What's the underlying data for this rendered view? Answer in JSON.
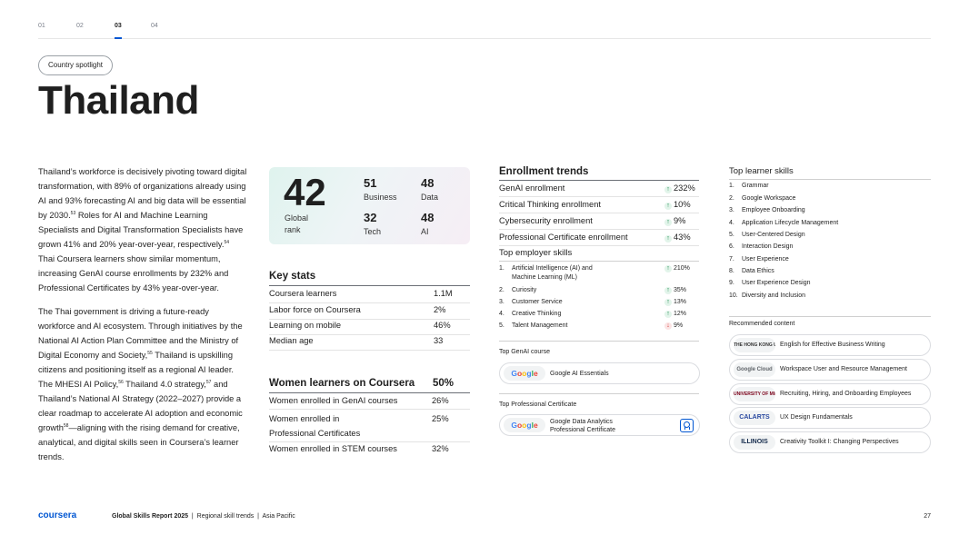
{
  "tabs": [
    "01",
    "02",
    "03",
    "04"
  ],
  "active_tab": "03",
  "spotlight_label": "Country spotlight",
  "page_title": "Thailand",
  "body": {
    "p1": "Thailand’s workforce is decisively pivoting toward digital transformation, with 89% of organizations already using AI and 93% forecasting AI and big data will be essential by 2030.",
    "p1_ref1": "53",
    "p1b": " Roles for AI and Machine Learning Specialists and Digital Transformation Specialists have grown 41% and 20% year-over-year, respectively.",
    "p1_ref2": "54",
    "p1c": " Thai Coursera learners show similar momentum, increasing GenAI course enrollments by 232% and Professional Certificates by 43% year-over-year.",
    "p2": "The Thai government is driving a future-ready workforce and AI ecosystem. Through initiatives by the National AI Action Plan Committee and the Ministry of Digital Economy and Society,",
    "p2_ref1": "55",
    "p2b": " Thailand is upskilling citizens and positioning itself as a regional AI leader. The MHESI AI Policy,",
    "p2_ref2": "56",
    "p2c": " Thailand 4.0 strategy,",
    "p2_ref3": "57",
    "p2d": " and Thailand’s National AI Strategy (2022–2027) provide a clear roadmap to accelerate AI adoption and economic growth",
    "p2_ref4": "58",
    "p2e": "—aligning with the rising demand for creative, analytical, and digital skills seen in Coursera’s learner trends."
  },
  "rank": {
    "global_value": "42",
    "global_label": "Global rank",
    "stats": [
      {
        "value": "51",
        "label": "Business"
      },
      {
        "value": "48",
        "label": "Data"
      },
      {
        "value": "32",
        "label": "Tech"
      },
      {
        "value": "48",
        "label": "AI"
      }
    ]
  },
  "key_stats": {
    "heading": "Key stats",
    "rows": [
      {
        "label": "Coursera learners",
        "value": "1.1M"
      },
      {
        "label": "Labor force on Coursera",
        "value": "2%"
      },
      {
        "label": "Learning on mobile",
        "value": "46%"
      },
      {
        "label": "Median age",
        "value": "33"
      }
    ]
  },
  "women": {
    "heading": "Women learners on Coursera",
    "heading_value": "50%",
    "rows": [
      {
        "label": "Women enrolled in GenAI courses",
        "value": "26%"
      },
      {
        "label": "Women enrolled in Professional Certificates",
        "value": "25%"
      },
      {
        "label": "Women enrolled in STEM courses",
        "value": "32%"
      }
    ]
  },
  "enrollment": {
    "heading": "Enrollment trends",
    "rows": [
      {
        "label": "GenAI enrollment",
        "value": "232%"
      },
      {
        "label": "Critical Thinking enrollment",
        "value": "10%"
      },
      {
        "label": "Cybersecurity enrollment",
        "value": "9%"
      },
      {
        "label": "Professional Certificate enrollment",
        "value": "43%"
      }
    ]
  },
  "employer": {
    "heading": "Top employer skills",
    "rows": [
      {
        "n": "1.",
        "label": "Artificial Intelligence (AI) and Machine Learning (ML)",
        "value": "210%",
        "dir": "up"
      },
      {
        "n": "2.",
        "label": "Curiosity",
        "value": "35%",
        "dir": "up"
      },
      {
        "n": "3.",
        "label": "Customer Service",
        "value": "13%",
        "dir": "up"
      },
      {
        "n": "4.",
        "label": "Creative Thinking",
        "value": "12%",
        "dir": "up"
      },
      {
        "n": "5.",
        "label": "Talent Management",
        "value": "9%",
        "dir": "down"
      }
    ]
  },
  "genai_course": {
    "heading": "Top GenAI course",
    "logo": "Google",
    "name": "Google AI Essentials"
  },
  "prof_cert": {
    "heading": "Top Professional Certificate",
    "logo": "Google",
    "name_line1": "Google Data Analytics",
    "name_line2": "Professional Certificate"
  },
  "learner_skills": {
    "heading": "Top learner skills",
    "items": [
      "Grammar",
      "Google Workspace",
      "Employee Onboarding",
      "Application Lifecycle Management",
      "User-Centered Design",
      "Interaction Design",
      "User Experience",
      "Data Ethics",
      "User Experience Design",
      "Diversity and Inclusion"
    ]
  },
  "recommended": {
    "heading": "Recommended content",
    "items": [
      {
        "logo": "THE HONG KONG UNIVERSITY OF SCIENCE AND TECHNOLOGY",
        "name": "English for Effective Business Writing"
      },
      {
        "logo": "Google Cloud",
        "name": "Workspace User and Resource Management"
      },
      {
        "logo": "UNIVERSITY OF MINNESOTA Driven to Discover",
        "name": "Recruiting, Hiring, and Onboarding Employees"
      },
      {
        "logo": "CALARTS",
        "name": "UX Design Fundamentals"
      },
      {
        "logo": "ILLINOIS",
        "name": "Creativity Toolkit I: Changing Perspectives"
      }
    ]
  },
  "footer": {
    "brand": "coursera",
    "report": "Global Skills Report 2025",
    "section": "Regional skill trends",
    "region": "Asia Pacific",
    "page": "27"
  },
  "colors": {
    "accent": "#0056d2",
    "up": "#1a8a4d",
    "down": "#d33b3b"
  }
}
